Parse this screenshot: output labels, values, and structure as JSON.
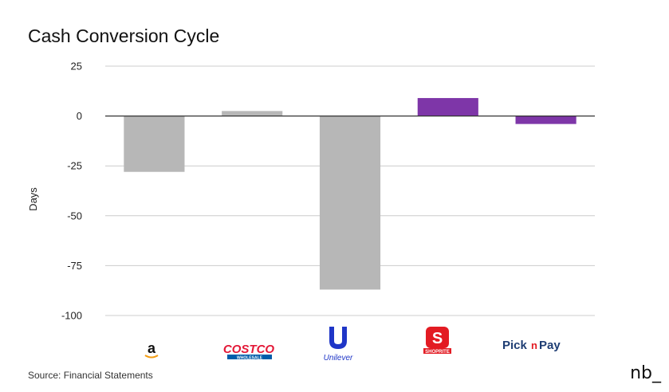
{
  "chart_data": {
    "type": "bar",
    "title": "Cash Conversion Cycle",
    "ylabel": "Days",
    "xlabel": "",
    "ylim": [
      -100,
      25
    ],
    "yticks": [
      25,
      0,
      -25,
      -50,
      -75,
      -100
    ],
    "ytick_labels": [
      "25",
      "0",
      "-25",
      "-50",
      "-75",
      "-100"
    ],
    "grid": true,
    "categories": [
      "Amazon",
      "Costco Wholesale",
      "Unilever",
      "Shoprite",
      "Pick n Pay"
    ],
    "values": [
      -28,
      2.5,
      -87,
      9,
      -4
    ],
    "colors": [
      "#b7b7b7",
      "#b7b7b7",
      "#b7b7b7",
      "#7e36a8",
      "#7e36a8"
    ],
    "category_logos": [
      "amazon-logo",
      "costco-logo",
      "unilever-logo",
      "shoprite-logo",
      "picknpay-logo"
    ]
  },
  "logos": {
    "amazon": "a",
    "costco_top": "COSTCO",
    "costco_bottom": "WHOLESALE",
    "unilever": "Unilever",
    "shoprite_letter": "S",
    "shoprite_word": "SHOPRITE",
    "picknpay_pick": "Pick",
    "picknpay_n": "n",
    "picknpay_pay": "Pay"
  },
  "source": "Source: Financial Statements",
  "brand": "nb_"
}
